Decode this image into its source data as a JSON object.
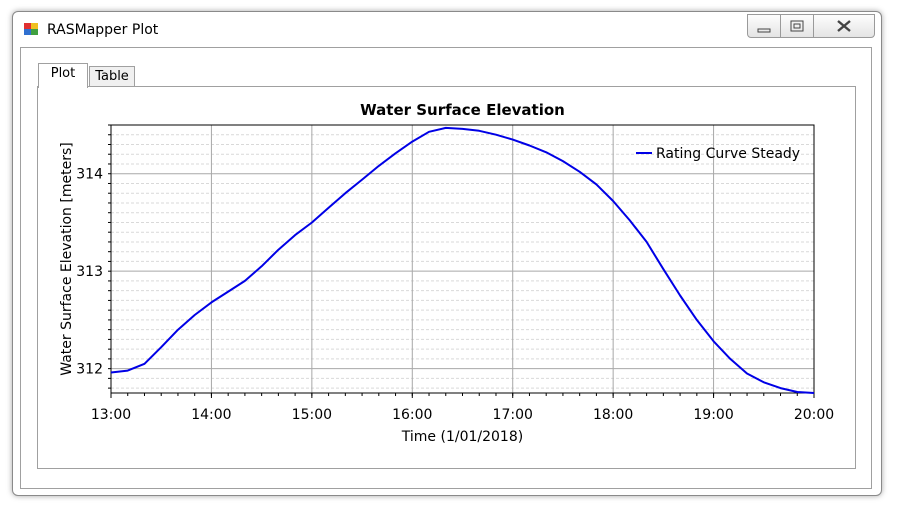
{
  "window": {
    "title": "RASMapper Plot"
  },
  "icons": {
    "app": "rasmapper-app-icon",
    "minimize": "minimize-icon",
    "maximize": "maximize-icon",
    "close": "close-icon"
  },
  "tabs": [
    {
      "label": "Plot",
      "selected": true
    },
    {
      "label": "Table",
      "selected": false
    }
  ],
  "colors": {
    "series": "#0000e6",
    "grid_major": "#a8a8a8",
    "grid_minor": "#d9d9d9"
  },
  "chart_data": {
    "type": "line",
    "title": "Water Surface Elevation",
    "xlabel": "Time (1/01/2018)",
    "ylabel": "Water Surface Elevation [meters]",
    "xlim": [
      "13:00",
      "20:00"
    ],
    "ylim": [
      311.75,
      314.5
    ],
    "x_ticks": [
      "13:00",
      "14:00",
      "15:00",
      "16:00",
      "17:00",
      "18:00",
      "19:00",
      "20:00"
    ],
    "y_ticks": [
      312,
      313,
      314
    ],
    "grid": true,
    "legend": {
      "position": "top-right"
    },
    "series": [
      {
        "name": "Rating Curve Steady",
        "color": "#0000e6",
        "x": [
          "13:00",
          "13:10",
          "13:20",
          "13:30",
          "13:40",
          "13:50",
          "14:00",
          "14:10",
          "14:20",
          "14:30",
          "14:40",
          "14:50",
          "15:00",
          "15:10",
          "15:20",
          "15:30",
          "15:40",
          "15:50",
          "16:00",
          "16:10",
          "16:20",
          "16:30",
          "16:40",
          "16:50",
          "17:00",
          "17:10",
          "17:20",
          "17:30",
          "17:40",
          "17:50",
          "18:00",
          "18:10",
          "18:20",
          "18:30",
          "18:40",
          "18:50",
          "19:00",
          "19:10",
          "19:20",
          "19:30",
          "19:40",
          "19:50",
          "20:00"
        ],
        "y": [
          311.96,
          311.98,
          312.05,
          312.22,
          312.4,
          312.55,
          312.68,
          312.79,
          312.9,
          313.05,
          313.22,
          313.37,
          313.5,
          313.65,
          313.8,
          313.94,
          314.08,
          314.21,
          314.33,
          314.43,
          314.47,
          314.46,
          314.44,
          314.4,
          314.35,
          314.29,
          314.22,
          314.13,
          314.02,
          313.89,
          313.72,
          313.52,
          313.3,
          313.02,
          312.75,
          312.5,
          312.28,
          312.1,
          311.95,
          311.86,
          311.8,
          311.76,
          311.75
        ]
      }
    ]
  }
}
